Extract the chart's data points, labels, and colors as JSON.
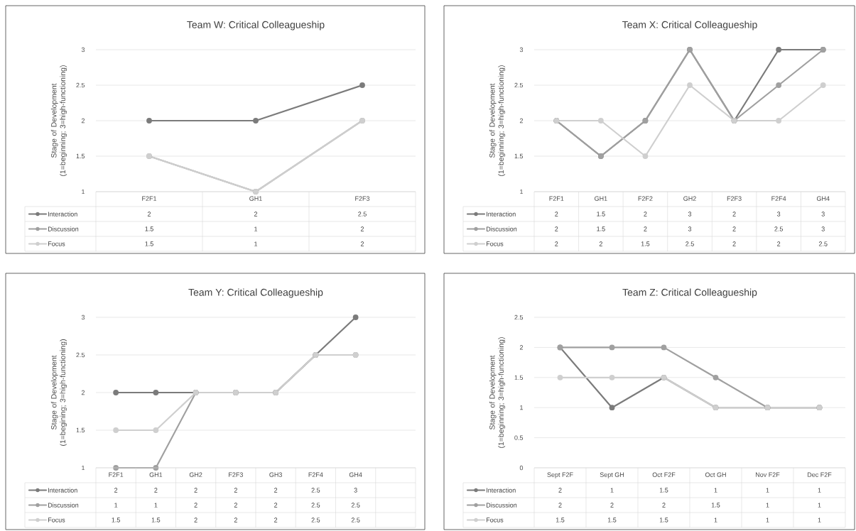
{
  "chart_data": [
    {
      "type": "line",
      "title": "Team W: Critical Colleagueship",
      "ylabel": "Stage of Development (1=beginning; 3=high-functioning)",
      "categories": [
        "F2F1",
        "GH1",
        "F2F3"
      ],
      "series": [
        {
          "name": "Interaction",
          "color": "#7b7b7b",
          "values": [
            2,
            2,
            2.5
          ]
        },
        {
          "name": "Discussion",
          "color": "#a0a0a0",
          "values": [
            1.5,
            1,
            2
          ]
        },
        {
          "name": "Focus",
          "color": "#cfcfcf",
          "values": [
            1.5,
            1,
            2
          ]
        }
      ],
      "ylim": [
        1,
        3
      ],
      "yticks": [
        1,
        1.5,
        2,
        2.5,
        3
      ],
      "grid": "y",
      "legend": "bottom",
      "marker": "circle",
      "line_style": "solid",
      "data_labels": true
    },
    {
      "type": "line",
      "title": "Team X: Critical Colleagueship",
      "ylabel": "Stage of Development (1=beginning; 3=high-functioning)",
      "categories": [
        "F2F1",
        "GH1",
        "F2F2",
        "GH2",
        "F2F3",
        "F2F4",
        "GH4"
      ],
      "series": [
        {
          "name": "Interaction",
          "color": "#7b7b7b",
          "values": [
            2,
            1.5,
            2,
            3,
            2,
            3,
            3
          ]
        },
        {
          "name": "Discussion",
          "color": "#a0a0a0",
          "values": [
            2,
            1.5,
            2,
            3,
            2,
            2.5,
            3
          ]
        },
        {
          "name": "Focus",
          "color": "#cfcfcf",
          "values": [
            2,
            2,
            1.5,
            2.5,
            2,
            2,
            2.5
          ]
        }
      ],
      "ylim": [
        1,
        3
      ],
      "yticks": [
        1,
        1.5,
        2,
        2.5,
        3
      ],
      "grid": "y",
      "legend": "bottom",
      "marker": "circle",
      "line_style": "solid",
      "data_labels": true
    },
    {
      "type": "line",
      "title": "Team Y: Critical Colleagueship",
      "ylabel": "Stage of Development (1=begining; 3=high-functioning)",
      "categories": [
        "F2F1",
        "GH1",
        "GH2",
        "F2F3",
        "GH3",
        "F2F4",
        "GH4",
        null
      ],
      "series": [
        {
          "name": "Interaction",
          "color": "#7b7b7b",
          "values": [
            2,
            2,
            2,
            2,
            2,
            2.5,
            3,
            null
          ]
        },
        {
          "name": "Discussion",
          "color": "#a0a0a0",
          "values": [
            1,
            1,
            2,
            2,
            2,
            2.5,
            2.5,
            null
          ]
        },
        {
          "name": "Focus",
          "color": "#cfcfcf",
          "values": [
            1.5,
            1.5,
            2,
            2,
            2,
            2.5,
            2.5,
            null
          ]
        }
      ],
      "ylim": [
        1,
        3
      ],
      "yticks": [
        1,
        1.5,
        2,
        2.5,
        3
      ],
      "grid": "y",
      "legend": "bottom",
      "marker": "circle",
      "line_style": "solid",
      "data_labels": true
    },
    {
      "type": "line",
      "title": "Team Z: Critical Colleagueship",
      "ylabel": "Stage of Development (1=beginning; 3=high-functioning)",
      "categories": [
        "Sept F2F",
        "Sept GH",
        "Oct F2F",
        "Oct GH",
        "Nov F2F",
        "Dec F2F"
      ],
      "series": [
        {
          "name": "Interaction",
          "color": "#7b7b7b",
          "values": [
            2,
            1,
            1.5,
            1,
            1,
            1
          ]
        },
        {
          "name": "Discussion",
          "color": "#a0a0a0",
          "values": [
            2,
            2,
            2,
            1.5,
            1,
            1
          ]
        },
        {
          "name": "Focus",
          "color": "#cfcfcf",
          "values": [
            1.5,
            1.5,
            1.5,
            1,
            1,
            1
          ]
        }
      ],
      "ylim": [
        0,
        2.5
      ],
      "yticks": [
        0,
        0.5,
        1,
        1.5,
        2,
        2.5
      ],
      "grid": "y",
      "legend": "bottom",
      "marker": "circle",
      "line_style": "solid",
      "data_labels": true
    }
  ]
}
